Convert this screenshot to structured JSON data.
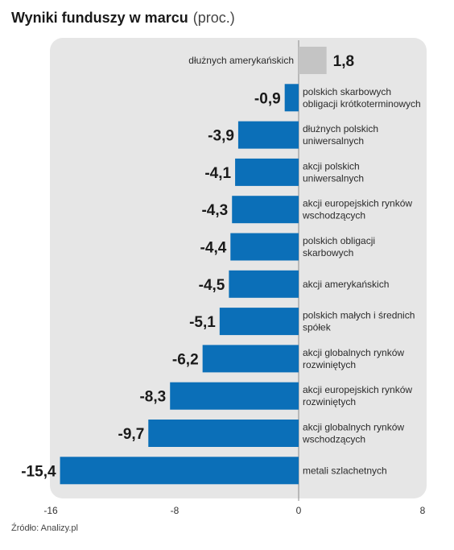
{
  "header": {
    "title": "Wyniki funduszy w marcu",
    "unit": "(proc.)"
  },
  "source": "Źródło: Analizy.pl",
  "colors": {
    "negative": "#0b6fb8",
    "positive": "#c4c4c4",
    "panel": "#e6e6e6"
  },
  "chart_data": {
    "type": "bar",
    "orientation": "horizontal",
    "title": "Wyniki funduszy w marcu",
    "unit": "(proc.)",
    "xlim": [
      -16,
      8
    ],
    "xticks": [
      "-16",
      "-8",
      "0",
      "8"
    ],
    "bars": [
      {
        "label": [
          "dłużnych amerykańskich"
        ],
        "value": 1.8,
        "value_label": "1,8"
      },
      {
        "label": [
          "polskich skarbowych",
          "obligacji krótkoterminowych"
        ],
        "value": -0.9,
        "value_label": "-0,9"
      },
      {
        "label": [
          "dłużnych polskich",
          "uniwersalnych"
        ],
        "value": -3.9,
        "value_label": "-3,9"
      },
      {
        "label": [
          "akcji polskich",
          "uniwersalnych"
        ],
        "value": -4.1,
        "value_label": "-4,1"
      },
      {
        "label": [
          "akcji europejskich rynków",
          "wschodzących"
        ],
        "value": -4.3,
        "value_label": "-4,3"
      },
      {
        "label": [
          "polskich obligacji",
          "skarbowych"
        ],
        "value": -4.4,
        "value_label": "-4,4"
      },
      {
        "label": [
          "akcji amerykańskich"
        ],
        "value": -4.5,
        "value_label": "-4,5"
      },
      {
        "label": [
          "polskich małych i średnich",
          "spółek"
        ],
        "value": -5.1,
        "value_label": "-5,1"
      },
      {
        "label": [
          "akcji globalnych rynków",
          "rozwiniętych"
        ],
        "value": -6.2,
        "value_label": "-6,2"
      },
      {
        "label": [
          "akcji europejskich rynków",
          "rozwiniętych"
        ],
        "value": -8.3,
        "value_label": "-8,3"
      },
      {
        "label": [
          "akcji globalnych rynków",
          "wschodzących"
        ],
        "value": -9.7,
        "value_label": "-9,7"
      },
      {
        "label": [
          "metali szlachetnych"
        ],
        "value": -15.4,
        "value_label": "-15,4"
      }
    ]
  }
}
